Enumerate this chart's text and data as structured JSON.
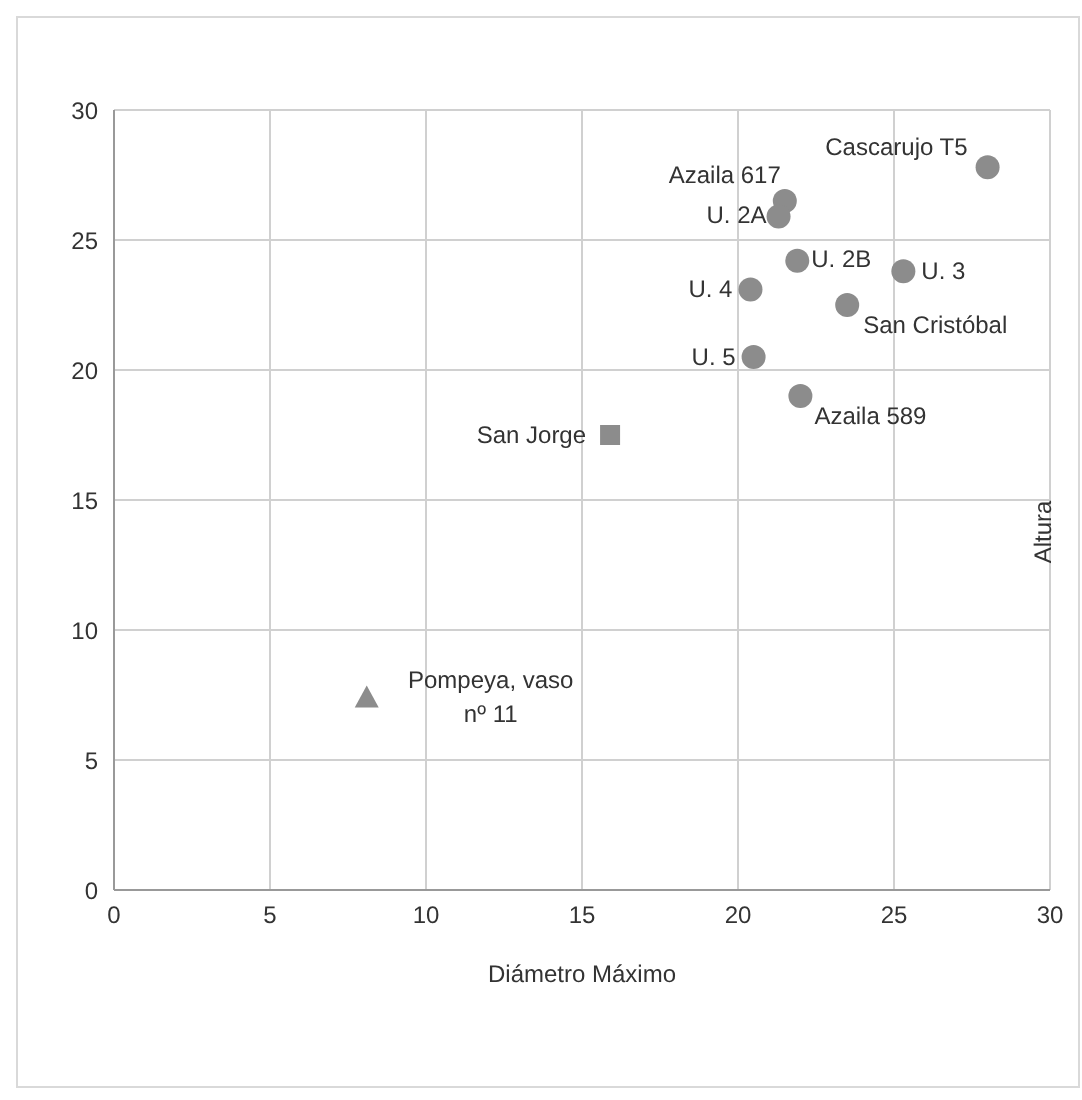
{
  "chart_data": {
    "type": "scatter",
    "xlabel": "Diámetro Máximo",
    "ylabel": "Altura",
    "xlim": [
      0,
      30
    ],
    "xticks": [
      0,
      5,
      10,
      15,
      20,
      25,
      30
    ],
    "ylim": [
      0,
      30
    ],
    "yticks": [
      0,
      5,
      10,
      15,
      20,
      25,
      30
    ],
    "grid": true,
    "legend": false,
    "series": [
      {
        "color": "#8c8c8c",
        "marker": "circle",
        "x": [
          28.0,
          21.5,
          21.3,
          21.9,
          25.3,
          20.4,
          23.5,
          20.5,
          22.0
        ],
        "values": [
          27.8,
          26.5,
          25.9,
          24.2,
          23.8,
          23.1,
          22.5,
          20.5,
          19.0
        ]
      },
      {
        "color": "#8c8c8c",
        "marker": "square",
        "x": [
          15.9
        ],
        "values": [
          17.5
        ]
      },
      {
        "color": "#8c8c8c",
        "marker": "triangle",
        "x": [
          8.1
        ],
        "values": [
          7.4
        ]
      }
    ],
    "annotations": [
      {
        "text": "Cascarujo T5",
        "x": 28.0,
        "y": 27.8
      },
      {
        "text": "Azaila 617",
        "x": 21.5,
        "y": 26.5
      },
      {
        "text": "U. 2A",
        "x": 21.3,
        "y": 25.9
      },
      {
        "text": "U. 2B",
        "x": 21.9,
        "y": 24.2
      },
      {
        "text": "U.  3",
        "x": 25.3,
        "y": 23.8
      },
      {
        "text": "U. 4",
        "x": 20.4,
        "y": 23.1
      },
      {
        "text": "San Cristóbal",
        "x": 23.5,
        "y": 22.5
      },
      {
        "text": "U. 5",
        "x": 20.5,
        "y": 20.5
      },
      {
        "text": "Azaila 589",
        "x": 22.0,
        "y": 19.0
      },
      {
        "text": "San Jorge",
        "x": 15.9,
        "y": 17.5
      },
      {
        "text": "Pompeya, vaso\nnº 11",
        "x": 8.1,
        "y": 7.4
      }
    ]
  }
}
